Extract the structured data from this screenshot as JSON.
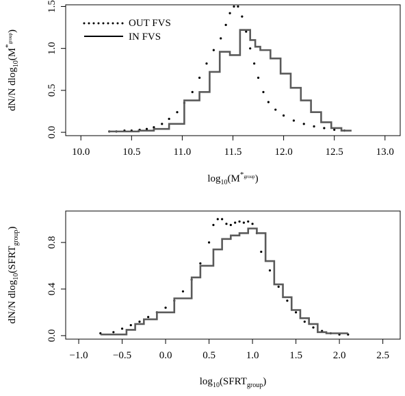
{
  "chart_data": [
    {
      "type": "step",
      "xlabel": {
        "prefix": "log",
        "prefix_sub": "10",
        "base": "(M",
        "sup": "*",
        "sup_sub": "group",
        "suffix": ")"
      },
      "ylabel": {
        "prefix": "dN/N dlog",
        "prefix_sub": "10",
        "base": "(M",
        "sup": "*",
        "sup_sub": "group",
        "suffix": ")"
      },
      "xlim": [
        9.85,
        13.15
      ],
      "ylim": [
        -0.04,
        1.52
      ],
      "xticks": [
        "10.0",
        "10.5",
        "11.0",
        "11.5",
        "12.0",
        "12.5",
        "13.0"
      ],
      "yticks": [
        "0.0",
        "0.5",
        "1.0",
        "1.5"
      ],
      "legend": {
        "position": "top-left",
        "entries": [
          "OUT FVS",
          "IN FVS"
        ]
      },
      "series": [
        {
          "name": "OUT FVS",
          "style": "dotted",
          "x": [
            10.28,
            10.35,
            10.43,
            10.5,
            10.58,
            10.65,
            10.72,
            10.8,
            10.87,
            10.95,
            11.02,
            11.1,
            11.17,
            11.24,
            11.31,
            11.38,
            11.43,
            11.47,
            11.51,
            11.55,
            11.59,
            11.63,
            11.67,
            11.71,
            11.75,
            11.8,
            11.85,
            11.92,
            12.0,
            12.1,
            12.2,
            12.3,
            12.4,
            12.5,
            12.6
          ],
          "y": [
            0.01,
            0.01,
            0.02,
            0.02,
            0.03,
            0.04,
            0.06,
            0.1,
            0.16,
            0.24,
            0.35,
            0.48,
            0.65,
            0.82,
            0.98,
            1.12,
            1.28,
            1.42,
            1.5,
            1.5,
            1.38,
            1.2,
            1.0,
            0.82,
            0.65,
            0.48,
            0.36,
            0.27,
            0.2,
            0.14,
            0.1,
            0.07,
            0.05,
            0.03,
            0.02
          ]
        },
        {
          "name": "IN FVS",
          "style": "solid",
          "edges": [
            10.27,
            10.42,
            10.57,
            10.72,
            10.87,
            11.02,
            11.17,
            11.27,
            11.37,
            11.47,
            11.57,
            11.62,
            11.67,
            11.72,
            11.77,
            11.87,
            11.97,
            12.07,
            12.17,
            12.27,
            12.37,
            12.47,
            12.57,
            12.67
          ],
          "values": [
            0.01,
            0.01,
            0.02,
            0.04,
            0.1,
            0.38,
            0.48,
            0.72,
            0.96,
            0.92,
            1.22,
            1.22,
            1.1,
            1.02,
            0.98,
            0.88,
            0.7,
            0.53,
            0.38,
            0.24,
            0.12,
            0.05,
            0.02
          ]
        }
      ]
    },
    {
      "type": "step",
      "xlabel": {
        "prefix": "log",
        "prefix_sub": "10",
        "base": "(SFRT",
        "sub": "group",
        "suffix": ")"
      },
      "ylabel": {
        "prefix": "dN/N dlog",
        "prefix_sub": "10",
        "base": "(SFRT",
        "sub": "group",
        "suffix": ")"
      },
      "xlim": [
        -1.15,
        2.7
      ],
      "ylim": [
        -0.03,
        1.07
      ],
      "xticks": [
        "−1.0",
        "−0.5",
        "0.0",
        "0.5",
        "1.0",
        "1.5",
        "2.0",
        "2.5"
      ],
      "yticks": [
        "0.0",
        "0.4",
        "0.8"
      ],
      "series": [
        {
          "name": "OUT FVS",
          "style": "dotted",
          "x": [
            -0.75,
            -0.6,
            -0.5,
            -0.4,
            -0.3,
            -0.2,
            -0.1,
            0.0,
            0.1,
            0.2,
            0.3,
            0.4,
            0.5,
            0.55,
            0.6,
            0.65,
            0.7,
            0.75,
            0.8,
            0.85,
            0.9,
            0.95,
            1.0,
            1.05,
            1.1,
            1.2,
            1.3,
            1.4,
            1.5,
            1.6,
            1.7,
            1.8,
            1.9,
            2.0,
            2.1
          ],
          "y": [
            0.02,
            0.03,
            0.06,
            0.09,
            0.12,
            0.16,
            0.2,
            0.24,
            0.3,
            0.38,
            0.48,
            0.62,
            0.8,
            0.95,
            1.0,
            1.0,
            0.96,
            0.95,
            0.97,
            0.98,
            0.97,
            0.98,
            0.96,
            0.88,
            0.72,
            0.56,
            0.42,
            0.3,
            0.2,
            0.12,
            0.07,
            0.04,
            0.02,
            0.01,
            0.01
          ]
        },
        {
          "name": "IN FVS",
          "style": "solid",
          "edges": [
            -0.75,
            -0.6,
            -0.45,
            -0.35,
            -0.25,
            -0.1,
            0.1,
            0.3,
            0.4,
            0.55,
            0.65,
            0.75,
            0.85,
            0.95,
            1.05,
            1.15,
            1.25,
            1.35,
            1.45,
            1.55,
            1.65,
            1.75,
            1.85,
            1.95,
            2.1
          ],
          "values": [
            0.01,
            0.01,
            0.05,
            0.1,
            0.14,
            0.2,
            0.32,
            0.5,
            0.6,
            0.74,
            0.83,
            0.86,
            0.88,
            0.92,
            0.88,
            0.64,
            0.44,
            0.33,
            0.22,
            0.15,
            0.1,
            0.03,
            0.02,
            0.02
          ]
        }
      ]
    }
  ]
}
